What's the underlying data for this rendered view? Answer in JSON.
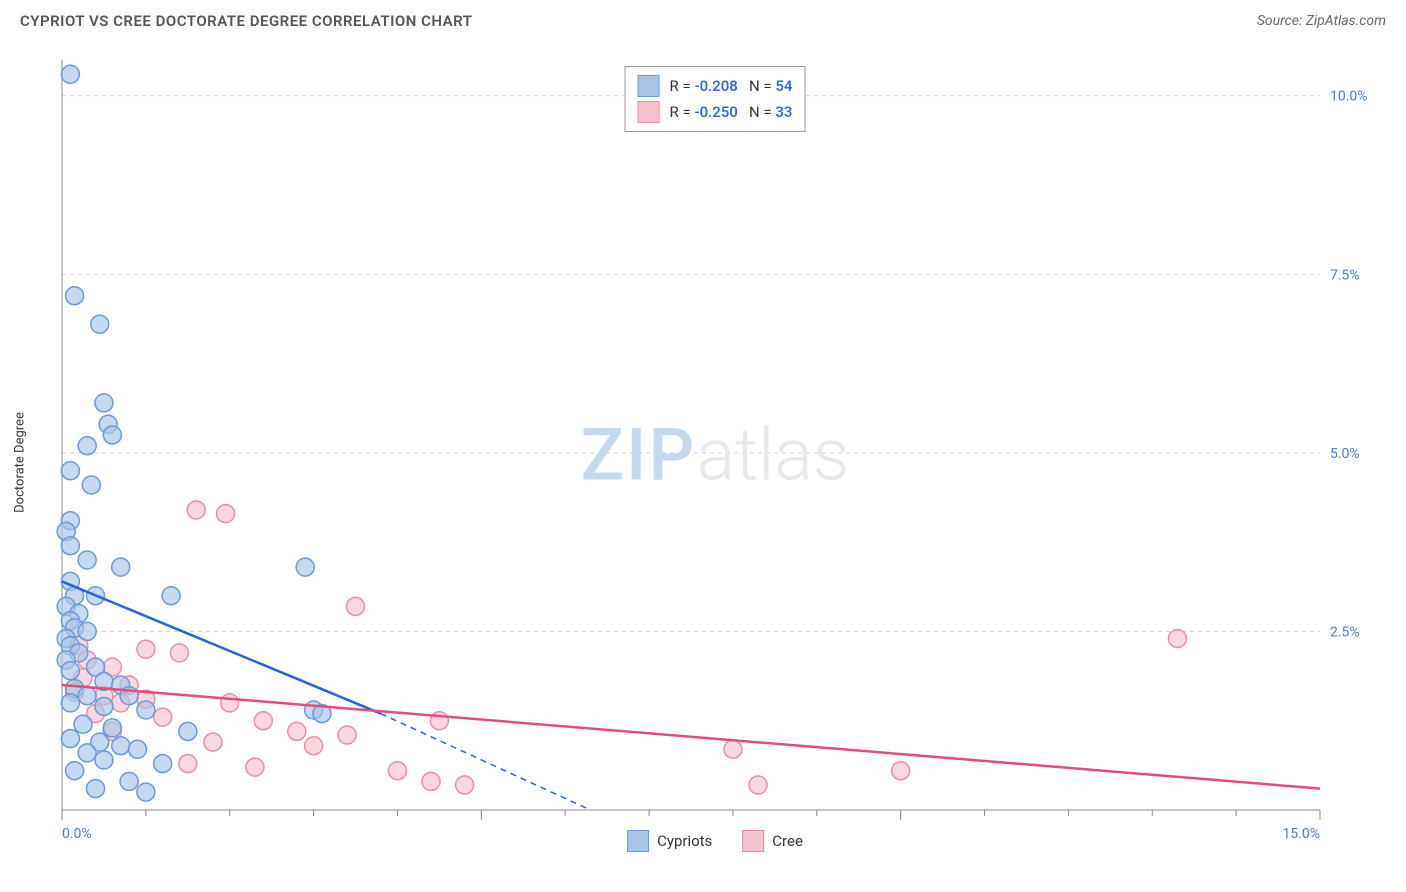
{
  "title": "CYPRIOT VS CREE DOCTORATE DEGREE CORRELATION CHART",
  "source": "Source: ZipAtlas.com",
  "y_axis_label": "Doctorate Degree",
  "watermark": {
    "zip": "ZIP",
    "atlas": "atlas"
  },
  "chart": {
    "type": "scatter",
    "background_color": "#ffffff",
    "grid_color": "#d0d0d0",
    "axis_color": "#888888",
    "xlim": [
      0,
      15
    ],
    "ylim": [
      0,
      10.5
    ],
    "x_ticks": [
      0,
      5,
      10,
      15
    ],
    "x_tick_labels": [
      "0.0%",
      "",
      "",
      "15.0%"
    ],
    "x_minor_ticks": [
      1,
      2,
      3,
      4,
      6,
      7,
      8,
      9,
      11,
      12,
      13,
      14
    ],
    "y_ticks": [
      2.5,
      5.0,
      7.5,
      10.0
    ],
    "y_tick_labels": [
      "2.5%",
      "5.0%",
      "7.5%",
      "10.0%"
    ],
    "tick_label_color": "#4a7bc8",
    "tick_label_fontsize": 14,
    "marker_radius": 9,
    "marker_stroke_width": 1.5,
    "line_width": 2.5,
    "series": [
      {
        "name": "Cypriots",
        "color_fill": "#a8c5e8",
        "color_stroke": "#6a9bd8",
        "line_color": "#2962d9",
        "line_dash_after_zero": true,
        "r": "-0.208",
        "n": "54",
        "regression": {
          "x1": 0,
          "y1": 3.2,
          "x2_solid": 3.8,
          "y2_solid": 1.35,
          "x2_dash": 6.3,
          "y2_dash": 0.0
        },
        "points": [
          [
            0.1,
            10.3
          ],
          [
            0.15,
            7.2
          ],
          [
            0.45,
            6.8
          ],
          [
            0.5,
            5.7
          ],
          [
            0.55,
            5.4
          ],
          [
            0.6,
            5.25
          ],
          [
            0.3,
            5.1
          ],
          [
            0.1,
            4.75
          ],
          [
            0.35,
            4.55
          ],
          [
            0.1,
            4.05
          ],
          [
            0.05,
            3.9
          ],
          [
            0.1,
            3.7
          ],
          [
            0.3,
            3.5
          ],
          [
            0.7,
            3.4
          ],
          [
            2.9,
            3.4
          ],
          [
            0.1,
            3.2
          ],
          [
            0.15,
            3.0
          ],
          [
            0.4,
            3.0
          ],
          [
            1.3,
            3.0
          ],
          [
            0.05,
            2.85
          ],
          [
            0.2,
            2.75
          ],
          [
            0.1,
            2.65
          ],
          [
            0.15,
            2.55
          ],
          [
            0.3,
            2.5
          ],
          [
            0.05,
            2.4
          ],
          [
            0.1,
            2.3
          ],
          [
            0.2,
            2.2
          ],
          [
            0.05,
            2.1
          ],
          [
            0.4,
            2.0
          ],
          [
            0.1,
            1.95
          ],
          [
            0.5,
            1.8
          ],
          [
            0.7,
            1.75
          ],
          [
            0.15,
            1.7
          ],
          [
            0.3,
            1.6
          ],
          [
            0.8,
            1.6
          ],
          [
            0.1,
            1.5
          ],
          [
            0.5,
            1.45
          ],
          [
            1.0,
            1.4
          ],
          [
            3.0,
            1.4
          ],
          [
            3.1,
            1.35
          ],
          [
            0.25,
            1.2
          ],
          [
            0.6,
            1.15
          ],
          [
            1.5,
            1.1
          ],
          [
            0.1,
            1.0
          ],
          [
            0.45,
            0.95
          ],
          [
            0.7,
            0.9
          ],
          [
            0.9,
            0.85
          ],
          [
            0.3,
            0.8
          ],
          [
            0.5,
            0.7
          ],
          [
            1.2,
            0.65
          ],
          [
            0.15,
            0.55
          ],
          [
            0.8,
            0.4
          ],
          [
            0.4,
            0.3
          ],
          [
            1.0,
            0.25
          ]
        ]
      },
      {
        "name": "Cree",
        "color_fill": "#f5c2cf",
        "color_stroke": "#e88fa5",
        "line_color": "#e84a7a",
        "line_dash_after_zero": false,
        "r": "-0.250",
        "n": "33",
        "regression": {
          "x1": 0,
          "y1": 1.75,
          "x2_solid": 15,
          "y2_solid": 0.3
        },
        "points": [
          [
            1.6,
            4.2
          ],
          [
            1.95,
            4.15
          ],
          [
            3.5,
            2.85
          ],
          [
            13.3,
            2.4
          ],
          [
            0.2,
            2.3
          ],
          [
            1.0,
            2.25
          ],
          [
            1.4,
            2.2
          ],
          [
            0.3,
            2.1
          ],
          [
            0.6,
            2.0
          ],
          [
            0.25,
            1.85
          ],
          [
            0.8,
            1.75
          ],
          [
            0.15,
            1.65
          ],
          [
            0.5,
            1.6
          ],
          [
            1.0,
            1.55
          ],
          [
            0.7,
            1.5
          ],
          [
            2.0,
            1.5
          ],
          [
            0.4,
            1.35
          ],
          [
            1.2,
            1.3
          ],
          [
            2.4,
            1.25
          ],
          [
            4.5,
            1.25
          ],
          [
            0.6,
            1.1
          ],
          [
            2.8,
            1.1
          ],
          [
            3.4,
            1.05
          ],
          [
            1.8,
            0.95
          ],
          [
            3.0,
            0.9
          ],
          [
            8.0,
            0.85
          ],
          [
            1.5,
            0.65
          ],
          [
            2.3,
            0.6
          ],
          [
            4.0,
            0.55
          ],
          [
            10.0,
            0.55
          ],
          [
            4.4,
            0.4
          ],
          [
            4.8,
            0.35
          ],
          [
            8.3,
            0.35
          ]
        ]
      }
    ]
  },
  "legend_bottom": [
    {
      "label": "Cypriots",
      "fill": "#a8c5e8",
      "stroke": "#6a9bd8"
    },
    {
      "label": "Cree",
      "fill": "#f5c2cf",
      "stroke": "#e88fa5"
    }
  ]
}
